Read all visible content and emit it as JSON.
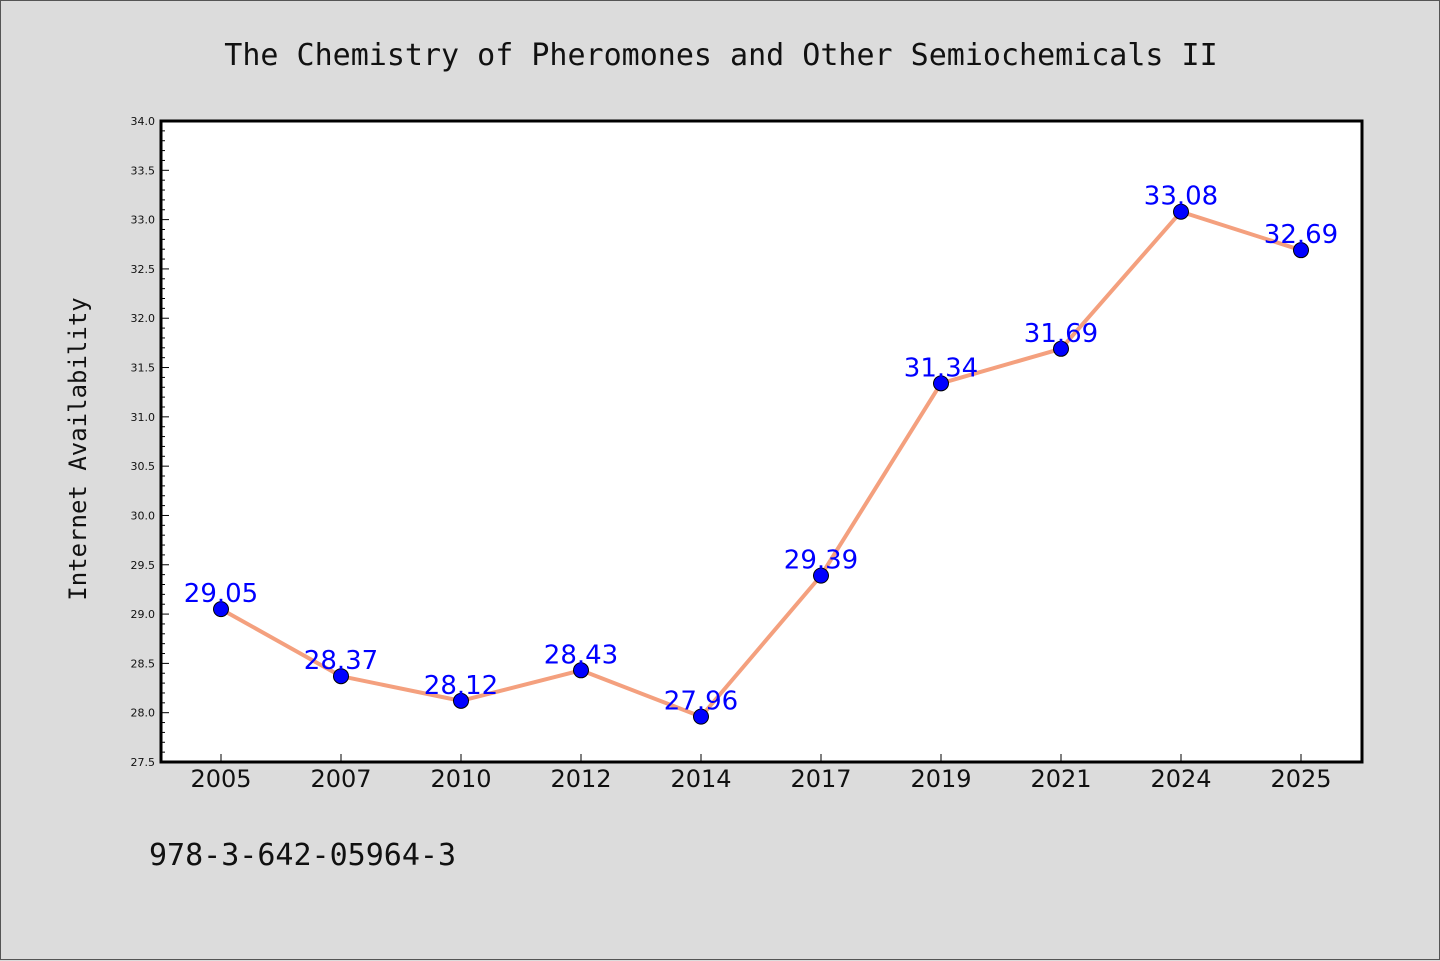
{
  "footer_text": "978-3-642-05964-3",
  "colors": {
    "background": "#dcdcdc",
    "plot_background": "#ffffff",
    "line": "#f4a07e",
    "marker": "#0000ff",
    "data_label": "#0000ff",
    "axis": "#000000"
  },
  "chart_data": {
    "type": "line",
    "title": "The Chemistry of Pheromones and Other Semiochemicals II",
    "xlabel": "",
    "ylabel": "Internet Availability",
    "categories": [
      "2005",
      "2007",
      "2010",
      "2012",
      "2014",
      "2017",
      "2019",
      "2021",
      "2024",
      "2025"
    ],
    "series": [
      {
        "values": [
          29.05,
          28.37,
          28.12,
          28.43,
          27.96,
          29.39,
          31.34,
          31.69,
          33.08,
          32.69
        ]
      }
    ],
    "data_labels": [
      "29.05",
      "28.37",
      "28.12",
      "28.43",
      "27.96",
      "29.39",
      "31.34",
      "31.69",
      "33.08",
      "32.69"
    ],
    "yticks": [
      "27.5",
      "28.0",
      "28.5",
      "29.0",
      "29.5",
      "30.0",
      "30.5",
      "31.0",
      "31.5",
      "32.0",
      "32.5",
      "33.0",
      "33.5",
      "34.0"
    ],
    "ylim": [
      27.5,
      34.0
    ],
    "grid": false,
    "legend": "none",
    "marker": "circle"
  }
}
